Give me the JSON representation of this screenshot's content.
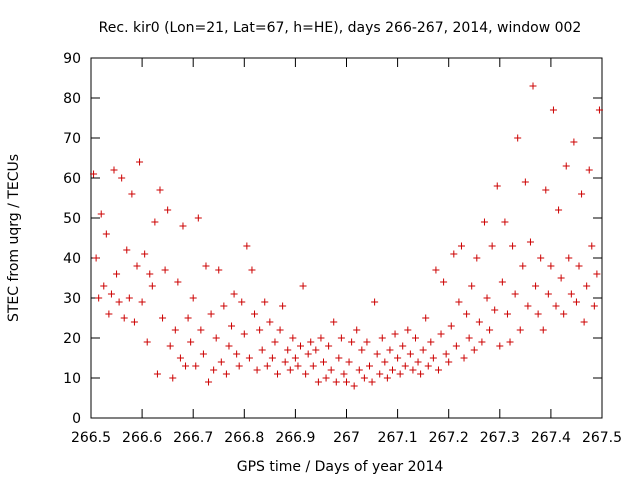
{
  "chart_data": {
    "type": "scatter",
    "title": "Rec. kir0 (Lon=21, Lat=67, h=HE), days 266-267, 2014, window 002",
    "xlabel": "GPS time / Days of year 2014",
    "ylabel": "STEC from uqrg / TECUs",
    "xlim": [
      266.5,
      267.5
    ],
    "ylim": [
      0,
      90
    ],
    "x_ticks": [
      266.5,
      266.6,
      266.7,
      266.8,
      266.9,
      267.0,
      267.1,
      267.2,
      267.3,
      267.4,
      267.5
    ],
    "x_tick_labels": [
      "266.5",
      "266.6",
      "266.7",
      "266.8",
      "266.9",
      "267",
      "267.1",
      "267.2",
      "267.3",
      "267.4",
      "267.5"
    ],
    "y_ticks": [
      0,
      10,
      20,
      30,
      40,
      50,
      60,
      70,
      80,
      90
    ],
    "y_tick_labels": [
      "0",
      "10",
      "20",
      "30",
      "40",
      "50",
      "60",
      "70",
      "80",
      "90"
    ],
    "marker": "+",
    "marker_color": "#cc0000",
    "series": [
      {
        "name": "STEC",
        "points": [
          [
            266.505,
            61
          ],
          [
            266.51,
            40
          ],
          [
            266.515,
            30
          ],
          [
            266.52,
            51
          ],
          [
            266.525,
            33
          ],
          [
            266.53,
            46
          ],
          [
            266.535,
            26
          ],
          [
            266.54,
            31
          ],
          [
            266.545,
            62
          ],
          [
            266.55,
            36
          ],
          [
            266.555,
            29
          ],
          [
            266.56,
            60
          ],
          [
            266.565,
            25
          ],
          [
            266.57,
            42
          ],
          [
            266.575,
            30
          ],
          [
            266.58,
            56
          ],
          [
            266.585,
            24
          ],
          [
            266.59,
            38
          ],
          [
            266.595,
            64
          ],
          [
            266.6,
            29
          ],
          [
            266.605,
            41
          ],
          [
            266.61,
            19
          ],
          [
            266.615,
            36
          ],
          [
            266.62,
            33
          ],
          [
            266.625,
            49
          ],
          [
            266.63,
            11
          ],
          [
            266.635,
            57
          ],
          [
            266.64,
            25
          ],
          [
            266.645,
            37
          ],
          [
            266.65,
            52
          ],
          [
            266.655,
            18
          ],
          [
            266.66,
            10
          ],
          [
            266.665,
            22
          ],
          [
            266.67,
            34
          ],
          [
            266.675,
            15
          ],
          [
            266.68,
            48
          ],
          [
            266.685,
            13
          ],
          [
            266.69,
            25
          ],
          [
            266.695,
            19
          ],
          [
            266.7,
            30
          ],
          [
            266.705,
            13
          ],
          [
            266.71,
            50
          ],
          [
            266.715,
            22
          ],
          [
            266.72,
            16
          ],
          [
            266.725,
            38
          ],
          [
            266.73,
            9
          ],
          [
            266.735,
            26
          ],
          [
            266.74,
            12
          ],
          [
            266.745,
            20
          ],
          [
            266.75,
            37
          ],
          [
            266.755,
            14
          ],
          [
            266.76,
            28
          ],
          [
            266.765,
            11
          ],
          [
            266.77,
            18
          ],
          [
            266.775,
            23
          ],
          [
            266.78,
            31
          ],
          [
            266.785,
            16
          ],
          [
            266.79,
            13
          ],
          [
            266.795,
            29
          ],
          [
            266.8,
            21
          ],
          [
            266.805,
            43
          ],
          [
            266.81,
            15
          ],
          [
            266.815,
            37
          ],
          [
            266.82,
            26
          ],
          [
            266.825,
            12
          ],
          [
            266.83,
            22
          ],
          [
            266.835,
            17
          ],
          [
            266.84,
            29
          ],
          [
            266.845,
            13
          ],
          [
            266.85,
            24
          ],
          [
            266.855,
            15
          ],
          [
            266.86,
            19
          ],
          [
            266.865,
            11
          ],
          [
            266.87,
            22
          ],
          [
            266.875,
            28
          ],
          [
            266.88,
            14
          ],
          [
            266.885,
            17
          ],
          [
            266.89,
            12
          ],
          [
            266.895,
            20
          ],
          [
            266.9,
            15
          ],
          [
            266.905,
            13
          ],
          [
            266.91,
            18
          ],
          [
            266.915,
            33
          ],
          [
            266.92,
            11
          ],
          [
            266.925,
            16
          ],
          [
            266.93,
            19
          ],
          [
            266.935,
            13
          ],
          [
            266.94,
            17
          ],
          [
            266.945,
            9
          ],
          [
            266.95,
            20
          ],
          [
            266.955,
            14
          ],
          [
            266.96,
            10
          ],
          [
            266.965,
            18
          ],
          [
            266.97,
            12
          ],
          [
            266.975,
            24
          ],
          [
            266.98,
            9
          ],
          [
            266.985,
            15
          ],
          [
            266.99,
            20
          ],
          [
            266.995,
            11
          ],
          [
            267.0,
            9
          ],
          [
            267.005,
            14
          ],
          [
            267.01,
            19
          ],
          [
            267.015,
            8
          ],
          [
            267.02,
            22
          ],
          [
            267.025,
            12
          ],
          [
            267.03,
            17
          ],
          [
            267.035,
            10
          ],
          [
            267.04,
            19
          ],
          [
            267.045,
            13
          ],
          [
            267.05,
            9
          ],
          [
            267.055,
            29
          ],
          [
            267.06,
            16
          ],
          [
            267.065,
            11
          ],
          [
            267.07,
            20
          ],
          [
            267.075,
            14
          ],
          [
            267.08,
            10
          ],
          [
            267.085,
            17
          ],
          [
            267.09,
            12
          ],
          [
            267.095,
            21
          ],
          [
            267.1,
            15
          ],
          [
            267.105,
            11
          ],
          [
            267.11,
            18
          ],
          [
            267.115,
            13
          ],
          [
            267.12,
            22
          ],
          [
            267.125,
            16
          ],
          [
            267.13,
            12
          ],
          [
            267.135,
            20
          ],
          [
            267.14,
            14
          ],
          [
            267.145,
            11
          ],
          [
            267.15,
            17
          ],
          [
            267.155,
            25
          ],
          [
            267.16,
            13
          ],
          [
            267.165,
            19
          ],
          [
            267.17,
            15
          ],
          [
            267.175,
            37
          ],
          [
            267.18,
            12
          ],
          [
            267.185,
            21
          ],
          [
            267.19,
            34
          ],
          [
            267.195,
            16
          ],
          [
            267.2,
            14
          ],
          [
            267.205,
            23
          ],
          [
            267.21,
            41
          ],
          [
            267.215,
            18
          ],
          [
            267.22,
            29
          ],
          [
            267.225,
            43
          ],
          [
            267.23,
            15
          ],
          [
            267.235,
            26
          ],
          [
            267.24,
            20
          ],
          [
            267.245,
            33
          ],
          [
            267.25,
            17
          ],
          [
            267.255,
            40
          ],
          [
            267.26,
            24
          ],
          [
            267.265,
            19
          ],
          [
            267.27,
            49
          ],
          [
            267.275,
            30
          ],
          [
            267.28,
            22
          ],
          [
            267.285,
            43
          ],
          [
            267.29,
            27
          ],
          [
            267.295,
            58
          ],
          [
            267.3,
            18
          ],
          [
            267.305,
            34
          ],
          [
            267.31,
            49
          ],
          [
            267.315,
            26
          ],
          [
            267.32,
            19
          ],
          [
            267.325,
            43
          ],
          [
            267.33,
            31
          ],
          [
            267.335,
            70
          ],
          [
            267.34,
            22
          ],
          [
            267.345,
            38
          ],
          [
            267.35,
            59
          ],
          [
            267.355,
            28
          ],
          [
            267.36,
            44
          ],
          [
            267.365,
            83
          ],
          [
            267.37,
            33
          ],
          [
            267.375,
            26
          ],
          [
            267.38,
            40
          ],
          [
            267.385,
            22
          ],
          [
            267.39,
            57
          ],
          [
            267.395,
            31
          ],
          [
            267.4,
            38
          ],
          [
            267.405,
            77
          ],
          [
            267.41,
            28
          ],
          [
            267.415,
            52
          ],
          [
            267.42,
            35
          ],
          [
            267.425,
            26
          ],
          [
            267.43,
            63
          ],
          [
            267.435,
            40
          ],
          [
            267.44,
            31
          ],
          [
            267.445,
            69
          ],
          [
            267.45,
            29
          ],
          [
            267.455,
            38
          ],
          [
            267.46,
            56
          ],
          [
            267.465,
            24
          ],
          [
            267.47,
            33
          ],
          [
            267.475,
            62
          ],
          [
            267.48,
            43
          ],
          [
            267.485,
            28
          ],
          [
            267.49,
            36
          ],
          [
            267.495,
            77
          ]
        ]
      }
    ]
  }
}
